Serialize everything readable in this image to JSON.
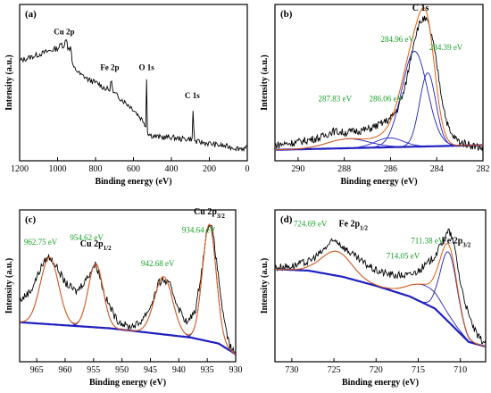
{
  "colors": {
    "raw": "#000000",
    "envelope": "#e06010",
    "components": "#2020c0",
    "background": "#2020c0",
    "annotation": "#18a028"
  },
  "chart_data": [
    {
      "type": "line",
      "panel": "(a)",
      "xlabel": "Binding energy (eV)",
      "ylabel": "Intensity (a.u.)",
      "xlim": [
        1200,
        0
      ],
      "ylim": [
        0,
        1
      ],
      "x_ticks": [
        1200,
        1000,
        800,
        600,
        400,
        200,
        0
      ],
      "series": [
        {
          "x": [
            1200,
            1150,
            1100,
            1050,
            1000,
            990,
            980,
            970,
            960,
            950,
            945,
            940,
            935,
            930,
            925,
            920,
            900,
            880,
            860,
            840,
            820,
            800,
            780,
            760,
            740,
            725,
            715,
            712,
            705,
            700,
            680,
            660,
            640,
            620,
            600,
            580,
            560,
            545,
            535,
            531,
            528,
            520,
            500,
            480,
            450,
            420,
            400,
            350,
            300,
            290,
            285,
            280,
            270,
            250,
            200,
            150,
            100,
            50,
            0
          ],
          "y": [
            0.64,
            0.66,
            0.68,
            0.7,
            0.72,
            0.73,
            0.75,
            0.73,
            0.76,
            0.78,
            0.69,
            0.75,
            0.7,
            0.74,
            0.65,
            0.6,
            0.58,
            0.55,
            0.54,
            0.52,
            0.51,
            0.5,
            0.49,
            0.47,
            0.46,
            0.45,
            0.53,
            0.46,
            0.43,
            0.43,
            0.41,
            0.39,
            0.37,
            0.35,
            0.33,
            0.3,
            0.27,
            0.25,
            0.22,
            0.55,
            0.2,
            0.17,
            0.16,
            0.155,
            0.15,
            0.15,
            0.15,
            0.14,
            0.14,
            0.14,
            0.36,
            0.13,
            0.12,
            0.12,
            0.11,
            0.1,
            0.09,
            0.08,
            0.08
          ]
        }
      ],
      "annotations": [
        {
          "text": "Cu 2p",
          "x": 965,
          "y": 0.81
        },
        {
          "text": "Fe 2p",
          "x": 725,
          "y": 0.58
        },
        {
          "text": "O 1s",
          "x": 531,
          "y": 0.58
        },
        {
          "text": "C 1s",
          "x": 290,
          "y": 0.4
        }
      ]
    },
    {
      "type": "line",
      "panel": "(b)",
      "xlabel": "Binding energy (eV)",
      "ylabel": "Intensity (a.u.)",
      "xlim": [
        291,
        282
      ],
      "ylim": [
        0,
        1
      ],
      "x_ticks": [
        290,
        288,
        286,
        284,
        282
      ],
      "series": [
        {
          "role": "raw",
          "x": [
            291,
            290,
            289,
            288.5,
            288,
            287.5,
            287,
            286.5,
            286,
            285.7,
            285.4,
            285.2,
            285.0,
            284.8,
            284.6,
            284.4,
            284.2,
            284.0,
            283.8,
            283.6,
            283.4,
            283.0,
            282.5,
            282
          ],
          "y": [
            0.1,
            0.12,
            0.15,
            0.19,
            0.18,
            0.19,
            0.2,
            0.23,
            0.27,
            0.33,
            0.45,
            0.6,
            0.76,
            0.86,
            0.91,
            0.89,
            0.79,
            0.62,
            0.42,
            0.27,
            0.17,
            0.12,
            0.1,
            0.08
          ]
        },
        {
          "role": "component",
          "name": "284.96 eV",
          "center": 284.96,
          "height": 0.61,
          "width": 0.55
        },
        {
          "role": "component",
          "name": "284.39 eV",
          "center": 284.39,
          "height": 0.47,
          "width": 0.35
        },
        {
          "role": "component",
          "name": "286.06 eV",
          "center": 286.06,
          "height": 0.06,
          "width": 0.6
        },
        {
          "role": "component",
          "name": "287.83 eV",
          "center": 287.83,
          "height": 0.06,
          "width": 0.9
        }
      ],
      "background": {
        "x": [
          291,
          282
        ],
        "y": [
          0.07,
          0.1
        ]
      },
      "peak_label": {
        "text": "C 1s",
        "x": 284.7,
        "y": 0.96
      },
      "annotations": [
        {
          "text": "284.96 eV",
          "x": 285.7,
          "y": 0.76
        },
        {
          "text": "284.39 eV",
          "x": 283.6,
          "y": 0.71
        },
        {
          "text": "286.06 eV",
          "x": 286.2,
          "y": 0.38
        },
        {
          "text": "287.83 eV",
          "x": 288.4,
          "y": 0.38
        }
      ]
    },
    {
      "type": "line",
      "panel": "(c)",
      "xlabel": "Binding energy (eV)",
      "ylabel": "Intensity (a.u.)",
      "xlim": [
        968,
        930
      ],
      "ylim": [
        0,
        1
      ],
      "x_ticks": [
        965,
        960,
        955,
        950,
        945,
        940,
        935,
        930
      ],
      "series": [
        {
          "role": "raw",
          "x": [
            968,
            966,
            964,
            963,
            962,
            961,
            960,
            958,
            956,
            955,
            954.6,
            954,
            953,
            951,
            949,
            947,
            945,
            943.5,
            942.7,
            941.5,
            940,
            938.5,
            937,
            936,
            935,
            934.6,
            934,
            933,
            932,
            931,
            930
          ],
          "y": [
            0.4,
            0.47,
            0.64,
            0.69,
            0.66,
            0.59,
            0.52,
            0.46,
            0.56,
            0.63,
            0.64,
            0.58,
            0.43,
            0.28,
            0.23,
            0.25,
            0.36,
            0.52,
            0.54,
            0.5,
            0.35,
            0.25,
            0.35,
            0.6,
            0.88,
            0.92,
            0.85,
            0.55,
            0.25,
            0.1,
            0.05
          ]
        },
        {
          "role": "component",
          "name": "962.75 eV",
          "center": 962.75,
          "height": 0.44,
          "width": 1.6
        },
        {
          "role": "component",
          "name": "954.62 eV",
          "center": 954.62,
          "height": 0.42,
          "width": 1.3
        },
        {
          "role": "component",
          "name": "942.68 eV",
          "center": 942.68,
          "height": 0.38,
          "width": 1.6
        },
        {
          "role": "component",
          "name": "934.64 eV",
          "center": 934.64,
          "height": 0.77,
          "width": 1.2
        }
      ],
      "background": {
        "x": [
          968,
          960,
          952,
          945,
          938,
          933,
          930
        ],
        "y": [
          0.26,
          0.24,
          0.22,
          0.19,
          0.16,
          0.12,
          0.05
        ]
      },
      "annotations": [
        {
          "text": "962.75 eV",
          "x": 964.3,
          "y": 0.77
        },
        {
          "text": "954.62 eV",
          "x": 956.2,
          "y": 0.8
        },
        {
          "text": "942.68 eV",
          "x": 943.7,
          "y": 0.63
        },
        {
          "text": "934.64 eV",
          "x": 936.5,
          "y": 0.85
        }
      ],
      "peak_labels": [
        {
          "text": "Cu 2p",
          "sub": "1/2",
          "x": 954.62,
          "y": 0.76
        },
        {
          "text": "Cu 2p",
          "sub": "3/2",
          "x": 934.64,
          "y": 0.97
        }
      ]
    },
    {
      "type": "line",
      "panel": "(d)",
      "xlabel": "Binding energy (eV)",
      "ylabel": "Intensity (a.u.)",
      "xlim": [
        732,
        707
      ],
      "ylim": [
        0,
        1
      ],
      "x_ticks": [
        730,
        725,
        720,
        715,
        710
      ],
      "series": [
        {
          "role": "raw",
          "x": [
            732,
            730,
            728,
            726.5,
            725.5,
            724.7,
            724,
            722,
            720,
            718,
            716,
            715,
            714,
            713,
            712,
            711.4,
            711,
            710.5,
            710,
            709,
            708,
            707
          ],
          "y": [
            0.62,
            0.63,
            0.66,
            0.72,
            0.78,
            0.8,
            0.76,
            0.67,
            0.6,
            0.57,
            0.57,
            0.6,
            0.64,
            0.7,
            0.8,
            0.86,
            0.82,
            0.7,
            0.52,
            0.3,
            0.17,
            0.12
          ]
        },
        {
          "role": "component",
          "name": "724.69 eV",
          "center": 724.69,
          "height": 0.16,
          "width": 1.8
        },
        {
          "role": "component",
          "name": "714.05 eV",
          "center": 714.05,
          "height": 0.12,
          "width": 2.0
        },
        {
          "role": "component",
          "name": "711.38 eV",
          "center": 711.38,
          "height": 0.46,
          "width": 1.0
        }
      ],
      "background": {
        "x": [
          732,
          728,
          724,
          720,
          716,
          713,
          711,
          709,
          707
        ],
        "y": [
          0.61,
          0.6,
          0.56,
          0.5,
          0.43,
          0.35,
          0.24,
          0.13,
          0.1
        ]
      },
      "annotations": [
        {
          "text": "724.69 eV",
          "x": 727.8,
          "y": 0.89
        },
        {
          "text": "714.05 eV",
          "x": 716.8,
          "y": 0.68
        },
        {
          "text": "711.38 eV",
          "x": 713.9,
          "y": 0.78
        }
      ],
      "peak_labels": [
        {
          "text": "Fe 2p",
          "sub": "1/2",
          "x": 722.7,
          "y": 0.89
        },
        {
          "text": "Fe 2p",
          "sub": "3/2",
          "x": 710.5,
          "y": 0.78
        }
      ]
    }
  ]
}
